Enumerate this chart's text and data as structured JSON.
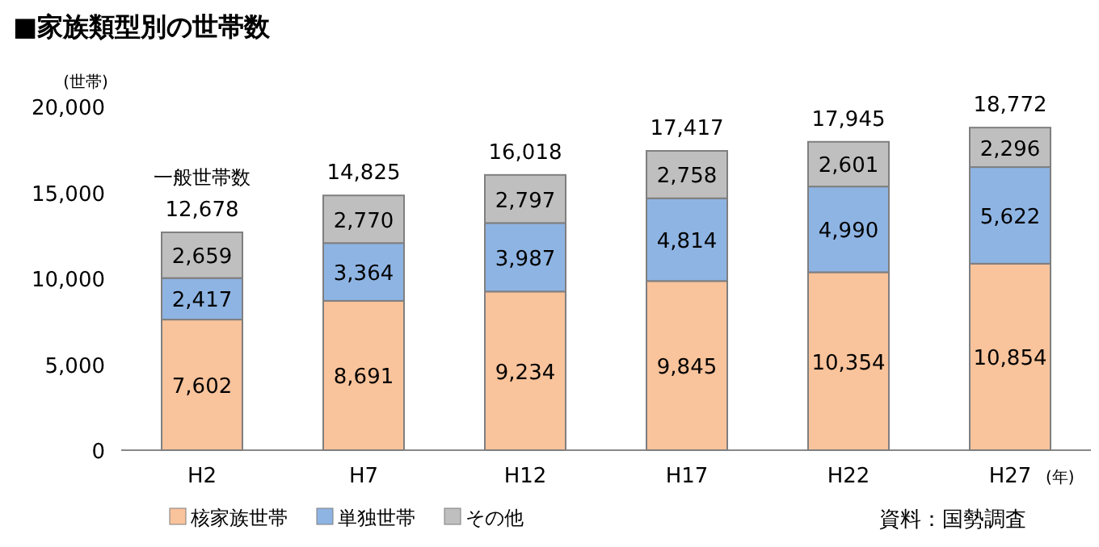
{
  "chart_data": {
    "type": "bar",
    "title": "■家族類型別の世帯数",
    "ylabel": "(世帯)",
    "xlabel": "(年)",
    "stacked": true,
    "legend": "bottom",
    "categories": [
      "H2",
      "H7",
      "H12",
      "H17",
      "H22",
      "H27"
    ],
    "series": [
      {
        "name": "核家族世帯",
        "color": "#f9c39b",
        "values": [
          7602,
          8691,
          9234,
          9845,
          10354,
          10854
        ],
        "value_labels": [
          "7,602",
          "8,691",
          "9,234",
          "9,845",
          "10,354",
          "10,854"
        ]
      },
      {
        "name": "単独世帯",
        "color": "#8eb4e3",
        "values": [
          2417,
          3364,
          3987,
          4814,
          4990,
          5622
        ],
        "value_labels": [
          "2,417",
          "3,364",
          "3,987",
          "4,814",
          "4,990",
          "5,622"
        ]
      },
      {
        "name": "その他",
        "color": "#bfbfbf",
        "values": [
          2659,
          2770,
          2797,
          2758,
          2601,
          2296
        ],
        "value_labels": [
          "2,659",
          "2,770",
          "2,797",
          "2,758",
          "2,601",
          "2,296"
        ]
      }
    ],
    "totals": [
      "12,678",
      "14,825",
      "16,018",
      "17,417",
      "17,945",
      "18,772"
    ],
    "ylim": [
      0,
      20000
    ],
    "yticks": [
      0,
      {
        "value": 5000,
        "label": "5,000"
      },
      {
        "value": 10000,
        "label": "10,000"
      },
      {
        "value": 15000,
        "label": "15,000"
      },
      {
        "value": 20000,
        "label": "20,000"
      }
    ],
    "annotations": [
      "一般世帯数",
      "資料：国勢調査"
    ]
  }
}
